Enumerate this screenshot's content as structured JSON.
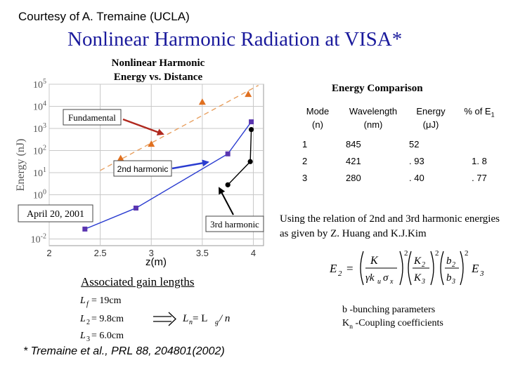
{
  "header": {
    "courtesy": "Courtesy of A. Tremaine (UCLA)",
    "title": "Nonlinear Harmonic Radiation at VISA*"
  },
  "chart_title_line1": "Nonlinear Harmonic",
  "chart_title_line2": "Energy vs. Distance",
  "chart_data": {
    "type": "scatter",
    "title": "Nonlinear Harmonic Energy vs. Distance",
    "xlabel": "z(m)",
    "ylabel": "Energy (nJ)",
    "xlim": [
      2,
      4.1
    ],
    "ylog": true,
    "ylim_log10": [
      -2.3,
      5
    ],
    "x_ticks": [
      "2",
      "2.5",
      "3",
      "3.5",
      "4"
    ],
    "y_ticks": [
      "10^5",
      "10^4",
      "10^3",
      "10^2",
      "10^1",
      "10^0",
      "10^-2"
    ],
    "series": [
      {
        "name": "Fundamental",
        "marker": "triangle",
        "color": "#e07020",
        "style": "dashed-fit",
        "points": [
          [
            2.7,
            1.65
          ],
          [
            3.0,
            2.3
          ],
          [
            3.5,
            4.2
          ],
          [
            3.95,
            4.55
          ]
        ]
      },
      {
        "name": "2nd harmonic",
        "marker": "square",
        "color": "#5a35b0",
        "style": "solid",
        "points": [
          [
            2.35,
            -1.55
          ],
          [
            2.85,
            -0.6
          ],
          [
            3.75,
            1.85
          ],
          [
            3.98,
            3.3
          ]
        ]
      },
      {
        "name": "3rd harmonic",
        "marker": "circle",
        "color": "#000000",
        "style": "solid",
        "points": [
          [
            3.75,
            0.45
          ],
          [
            3.97,
            1.5
          ],
          [
            3.98,
            2.95
          ]
        ]
      }
    ],
    "annotations": [
      "Fundamental",
      "2nd harmonic",
      "3rd harmonic",
      "April 20, 2001"
    ]
  },
  "table": {
    "title": "Energy Comparison",
    "header": {
      "mode_l1": "Mode",
      "mode_l2": "(n)",
      "wave_l1": "Wavelength",
      "wave_l2": "(nm)",
      "energy_l1": "Energy",
      "energy_l2": "(μJ)",
      "pct": "% of E",
      "pct_sub": "1"
    },
    "rows": [
      {
        "n": "1",
        "wavelength": "845",
        "energy": "52",
        "pct": ""
      },
      {
        "n": "2",
        "wavelength": "421",
        "energy": ". 93",
        "pct": "1. 8"
      },
      {
        "n": "3",
        "wavelength": "280",
        "energy": ". 40",
        "pct": ". 77"
      }
    ]
  },
  "relation_text": "Using the relation of 2nd and 3rd harmonic energies as given by Z. Huang and K.J.Kim",
  "formula": {
    "lhs": "E",
    "lhs_sub": "2",
    "num": "K",
    "den": "γk",
    "den_sub": "u",
    "den_sigma": "σ",
    "den_sigma_sub": "x",
    "k2": "K",
    "k2_sub": "2",
    "k3": "K",
    "k3_sub": "3",
    "b2": "b",
    "b2_sub": "2",
    "b3": "b",
    "b3_sub": "3",
    "exp": "2",
    "rhs": "E",
    "rhs_sub": "3"
  },
  "b_params": {
    "line1": "b -bunching parameters",
    "k_letter": "K",
    "k_sub": "n",
    "line2_rest": " -Coupling coefficients"
  },
  "gain": {
    "title": "Associated gain lengths",
    "l1": "L",
    "l1_sub": "f",
    "l1_val": "= 19cm",
    "l2": "L",
    "l2_sub": "2",
    "l2_val": "= 9.8cm",
    "l3": "L",
    "l3_sub": "3",
    "l3_val": "= 6.0cm",
    "eq_lhs": "L",
    "eq_lhs_sub": "n",
    "eq_mid": " = L",
    "eq_mid_sub": "g",
    "eq_rhs": " / n"
  },
  "footnote": "* Tremaine et al., PRL 88, 204801(2002)"
}
